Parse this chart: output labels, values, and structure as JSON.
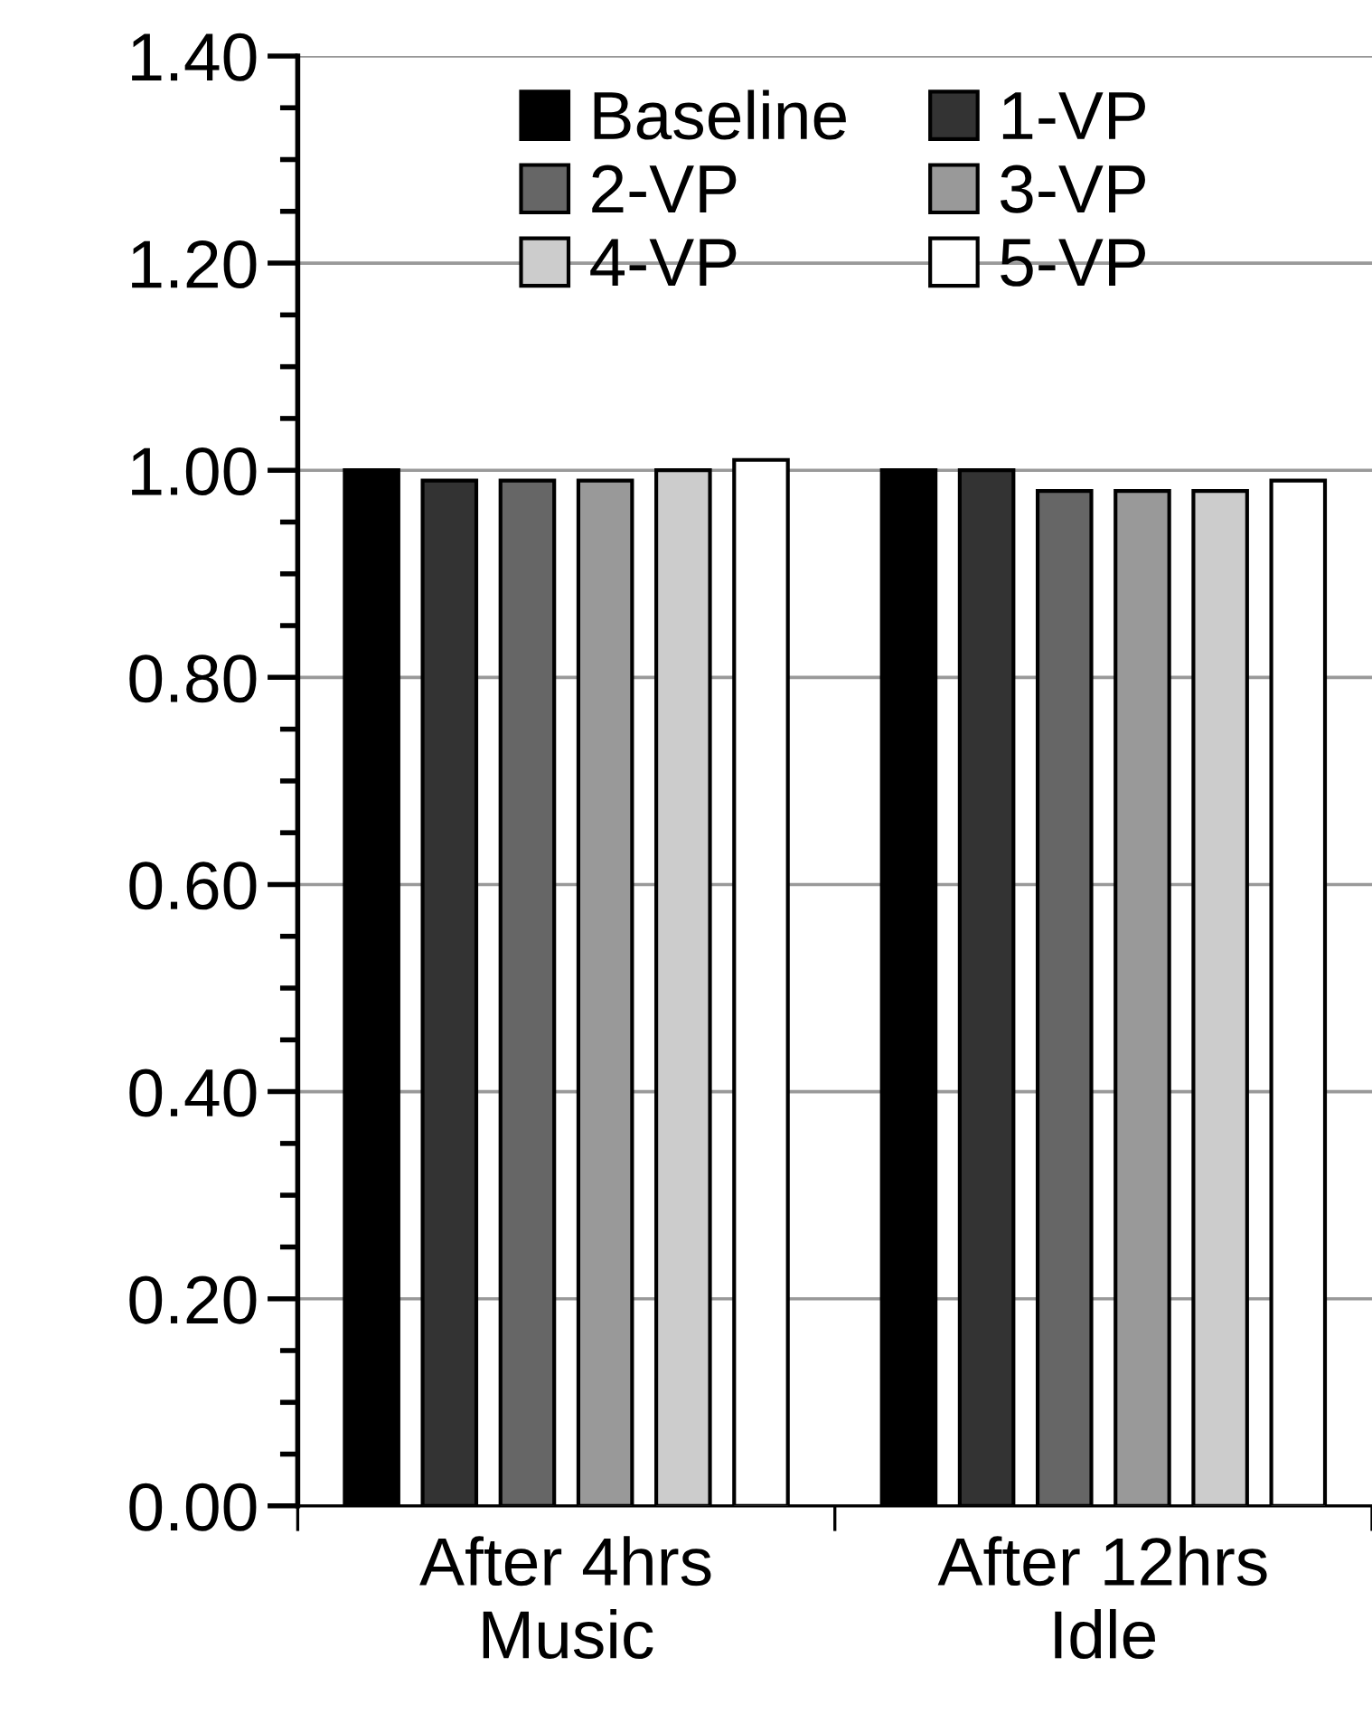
{
  "chart_data": {
    "type": "bar",
    "categories": [
      "After 4hrs\nMusic",
      "After 12hrs\nIdle"
    ],
    "series": [
      {
        "name": "Baseline",
        "color": "#000000",
        "values": [
          1.0,
          1.0
        ]
      },
      {
        "name": "1-VP",
        "color": "#333333",
        "values": [
          0.99,
          1.0
        ]
      },
      {
        "name": "2-VP",
        "color": "#666666",
        "values": [
          0.99,
          0.98
        ]
      },
      {
        "name": "3-VP",
        "color": "#999999",
        "values": [
          0.99,
          0.98
        ]
      },
      {
        "name": "4-VP",
        "color": "#cccccc",
        "values": [
          1.0,
          0.98
        ]
      },
      {
        "name": "5-VP",
        "color": "#ffffff",
        "values": [
          1.01,
          0.99
        ]
      }
    ],
    "ylim": [
      0,
      1.4
    ],
    "yticks": [
      {
        "value": 0,
        "label": "0.00"
      },
      {
        "value": 0.2,
        "label": "0.20"
      },
      {
        "value": 0.4,
        "label": "0.40"
      },
      {
        "value": 0.6,
        "label": "0.60"
      },
      {
        "value": 0.8,
        "label": "0.80"
      },
      {
        "value": 1,
        "label": "1.00"
      },
      {
        "value": 1.2,
        "label": "1.20"
      },
      {
        "value": 1.4,
        "label": "1.40"
      }
    ],
    "grid": "y",
    "legend": "top"
  }
}
